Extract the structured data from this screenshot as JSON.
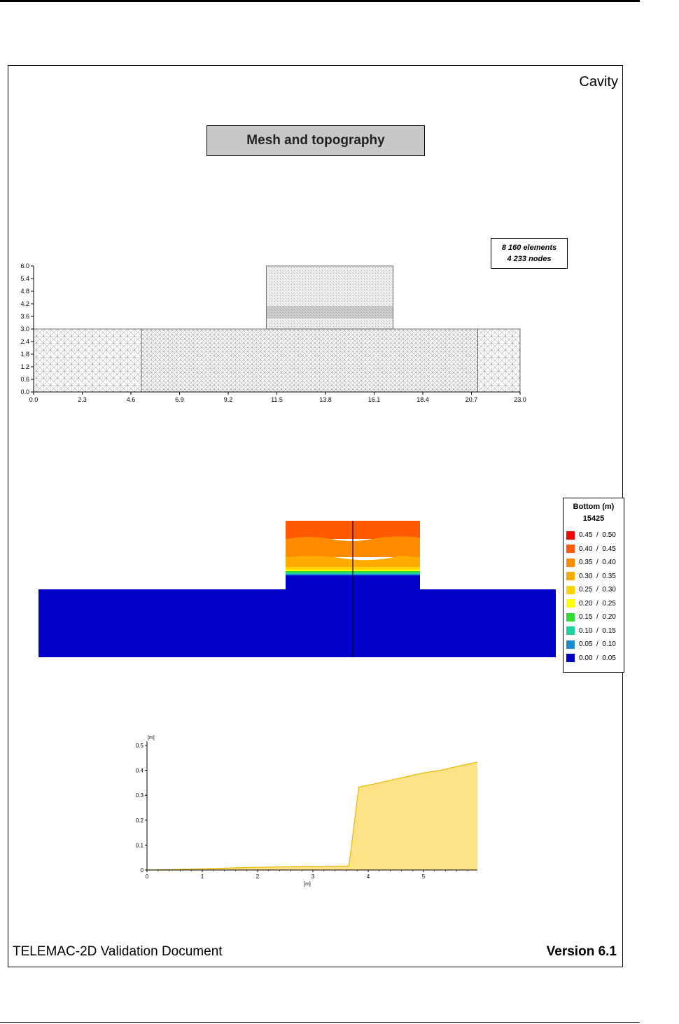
{
  "page": {
    "corner_title": "Cavity",
    "footer_left": "TELEMAC-2D Validation Document",
    "footer_right": "Version 6.1"
  },
  "mesh": {
    "title": "Mesh and topography",
    "stats_line1": "8 160 elements",
    "stats_line2": "4 233 nodes",
    "x_ticks": [
      "0.0",
      "2.3",
      "4.6",
      "6.9",
      "9.2",
      "11.5",
      "13.8",
      "16.1",
      "18.4",
      "20.7",
      "23.0"
    ],
    "y_ticks": [
      "0.0",
      "0.6",
      "1.2",
      "1.8",
      "2.4",
      "3.0",
      "3.6",
      "4.2",
      "4.8",
      "5.4",
      "6.0"
    ]
  },
  "legend": {
    "title": "Bottom (m)",
    "subtitle": "15425",
    "entries": [
      {
        "label": "0.45  /  0.50",
        "color": "#ff0000"
      },
      {
        "label": "0.40  /  0.45",
        "color": "#ff5a00"
      },
      {
        "label": "0.35  /  0.40",
        "color": "#ff8c00"
      },
      {
        "label": "0.30  /  0.35",
        "color": "#ffaa00"
      },
      {
        "label": "0.25  /  0.30",
        "color": "#ffd200"
      },
      {
        "label": "0.20  /  0.25",
        "color": "#ffff00"
      },
      {
        "label": "0.15  /  0.20",
        "color": "#32dc32"
      },
      {
        "label": "0.10  /  0.15",
        "color": "#1ed2a0"
      },
      {
        "label": "0.05  /  0.10",
        "color": "#1e8cd2"
      },
      {
        "label": "0.00  /  0.05",
        "color": "#0000c8"
      }
    ]
  },
  "chart_data": {
    "type": "area",
    "title": "",
    "xlabel": "[m]",
    "ylabel": "[m]",
    "xlim": [
      0,
      6
    ],
    "ylim": [
      0,
      0.5
    ],
    "x_ticks": [
      "0",
      "1",
      "2",
      "3",
      "4",
      "5"
    ],
    "y_ticks": [
      "0",
      "0.1",
      "0.2",
      "0.3",
      "0.4",
      "0.5"
    ],
    "fill_color": "#fde286",
    "line_color": "#e6b800",
    "series": [
      {
        "x": [
          0,
          0.5,
          1.0,
          1.5,
          2.0,
          2.5,
          3.0,
          3.5,
          3.65,
          3.83,
          4.1,
          4.4,
          4.7,
          5.0,
          5.3,
          5.6,
          6.0
        ],
        "values": [
          0.0,
          0.002,
          0.005,
          0.008,
          0.011,
          0.013,
          0.015,
          0.016,
          0.016,
          0.333,
          0.345,
          0.36,
          0.375,
          0.39,
          0.4,
          0.415,
          0.435
        ]
      }
    ]
  }
}
